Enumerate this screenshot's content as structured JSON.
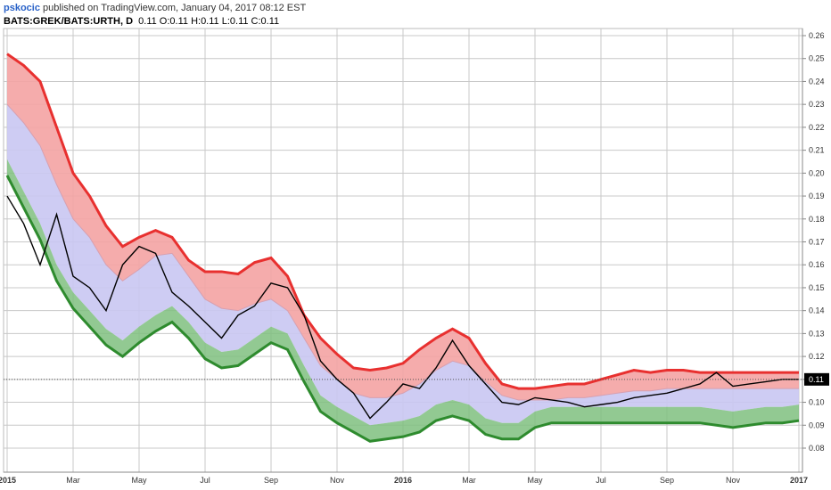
{
  "header": {
    "author": "pskocic",
    "published_text": "published on TradingView.com, January 04, 2017 08:12 EST",
    "symbol": "BATS:GREK/BATS:URTH, D",
    "ohlc": "0.11 O:0.11 H:0.11 L:0.11 C:0.11"
  },
  "chart_data": {
    "type": "line",
    "title": "",
    "y_axis_side": "right",
    "ylim": [
      0.08,
      0.26
    ],
    "y_ticks": [
      "0.26",
      "0.25",
      "0.24",
      "0.23",
      "0.22",
      "0.21",
      "0.20",
      "0.19",
      "0.18",
      "0.17",
      "0.16",
      "0.15",
      "0.14",
      "0.13",
      "0.12",
      "0.11",
      "0.10",
      "0.09",
      "0.08"
    ],
    "x_tick_labels": [
      "2015",
      "Mar",
      "May",
      "Jul",
      "Sep",
      "Nov",
      "2016",
      "Mar",
      "May",
      "Jul",
      "Sep",
      "Nov",
      "2017"
    ],
    "x_tick_bold": [
      "2015",
      "2016",
      "2017"
    ],
    "last_price_label": "0.11",
    "grid": true,
    "colors": {
      "upper_band": "#e8302f",
      "upper_fill": "#f4a3a3",
      "middle_fill": "#c9c6f2",
      "lower_band": "#2e8b2e",
      "lower_fill": "#7fbf7f",
      "price": "#000000",
      "middle_line": "#d7a0b0"
    },
    "x_months": [
      0,
      0.5,
      1,
      1.5,
      2,
      2.5,
      3,
      3.5,
      4,
      4.5,
      5,
      5.5,
      6,
      6.5,
      7,
      7.5,
      8,
      8.5,
      9,
      9.5,
      10,
      10.5,
      11,
      11.5,
      12,
      12.5,
      13,
      13.5,
      14,
      14.5,
      15,
      15.5,
      16,
      16.5,
      17,
      17.5,
      18,
      18.5,
      19,
      19.5,
      20,
      20.5,
      21,
      21.5,
      22,
      22.5,
      23,
      23.5,
      24
    ],
    "series": [
      {
        "name": "upper",
        "values": [
          0.252,
          0.247,
          0.24,
          0.22,
          0.2,
          0.19,
          0.177,
          0.168,
          0.172,
          0.175,
          0.172,
          0.162,
          0.157,
          0.157,
          0.156,
          0.161,
          0.163,
          0.155,
          0.138,
          0.128,
          0.121,
          0.115,
          0.114,
          0.115,
          0.117,
          0.123,
          0.128,
          0.132,
          0.128,
          0.117,
          0.108,
          0.106,
          0.106,
          0.107,
          0.108,
          0.108,
          0.11,
          0.112,
          0.114,
          0.113,
          0.114,
          0.114,
          0.113,
          0.113,
          0.113,
          0.113,
          0.113,
          0.113,
          0.113
        ]
      },
      {
        "name": "middle",
        "values": [
          0.23,
          0.222,
          0.212,
          0.195,
          0.18,
          0.172,
          0.16,
          0.153,
          0.158,
          0.164,
          0.165,
          0.155,
          0.145,
          0.141,
          0.14,
          0.143,
          0.145,
          0.14,
          0.128,
          0.116,
          0.11,
          0.104,
          0.102,
          0.102,
          0.104,
          0.108,
          0.114,
          0.118,
          0.116,
          0.109,
          0.103,
          0.101,
          0.101,
          0.101,
          0.102,
          0.102,
          0.103,
          0.104,
          0.105,
          0.105,
          0.106,
          0.106,
          0.106,
          0.106,
          0.106,
          0.106,
          0.106,
          0.106,
          0.106
        ]
      },
      {
        "name": "lower",
        "values": [
          0.206,
          0.192,
          0.178,
          0.16,
          0.148,
          0.14,
          0.132,
          0.127,
          0.133,
          0.138,
          0.142,
          0.135,
          0.126,
          0.122,
          0.123,
          0.128,
          0.133,
          0.13,
          0.116,
          0.103,
          0.098,
          0.094,
          0.09,
          0.091,
          0.092,
          0.094,
          0.099,
          0.101,
          0.099,
          0.093,
          0.091,
          0.091,
          0.096,
          0.098,
          0.098,
          0.098,
          0.098,
          0.098,
          0.098,
          0.098,
          0.098,
          0.098,
          0.098,
          0.097,
          0.096,
          0.097,
          0.098,
          0.098,
          0.099
        ]
      },
      {
        "name": "price",
        "values": [
          0.19,
          0.178,
          0.16,
          0.182,
          0.155,
          0.15,
          0.14,
          0.16,
          0.168,
          0.165,
          0.148,
          0.142,
          0.135,
          0.128,
          0.138,
          0.142,
          0.152,
          0.15,
          0.138,
          0.118,
          0.11,
          0.104,
          0.093,
          0.1,
          0.108,
          0.106,
          0.115,
          0.127,
          0.116,
          0.108,
          0.1,
          0.099,
          0.102,
          0.101,
          0.1,
          0.098,
          0.099,
          0.1,
          0.102,
          0.103,
          0.104,
          0.106,
          0.108,
          0.113,
          0.107,
          0.108,
          0.109,
          0.11,
          0.11
        ]
      }
    ]
  }
}
